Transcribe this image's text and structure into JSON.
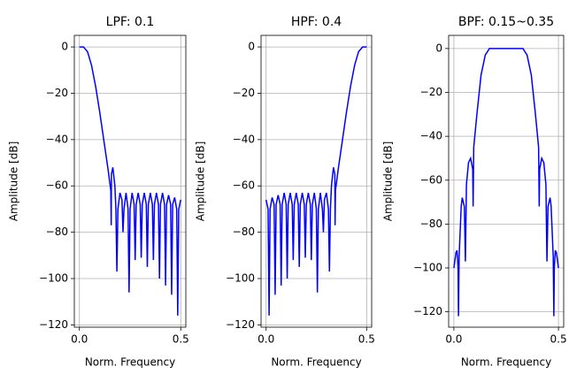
{
  "chart_data": [
    {
      "type": "line",
      "title": "LPF: 0.1",
      "x_label": "Norm. Frequency",
      "y_label": "Amplitude [dB]",
      "grid": true,
      "xlim": [
        -0.025,
        0.525
      ],
      "ylim": [
        -121,
        5
      ],
      "xticks": [
        {
          "value": 0,
          "label": "0.0"
        },
        0.5
      ],
      "yticks": [
        0,
        {
          "value": -20,
          "label": "−20"
        },
        {
          "value": -40,
          "label": "−40"
        },
        {
          "value": -60,
          "label": "−60"
        },
        {
          "value": -80,
          "label": "−80"
        },
        {
          "value": -100,
          "label": "−100"
        },
        {
          "value": -120,
          "label": "−120"
        }
      ],
      "x": [
        0,
        0.02,
        0.04,
        0.06,
        0.08,
        0.1,
        0.12,
        0.14,
        0.155,
        0.157,
        0.158,
        0.165,
        0.175,
        0.18,
        0.185,
        0.19,
        0.2,
        0.21,
        0.215,
        0.22,
        0.23,
        0.24,
        0.245,
        0.25,
        0.26,
        0.27,
        0.275,
        0.28,
        0.29,
        0.3,
        0.305,
        0.31,
        0.32,
        0.33,
        0.335,
        0.34,
        0.35,
        0.36,
        0.365,
        0.37,
        0.38,
        0.39,
        0.395,
        0.4,
        0.41,
        0.42,
        0.425,
        0.43,
        0.44,
        0.45,
        0.455,
        0.46,
        0.47,
        0.48,
        0.485,
        0.49,
        0.5
      ],
      "series": [
        {
          "color": "#0000ff",
          "values": [
            0,
            0,
            -2,
            -8,
            -17,
            -28,
            -40,
            -52,
            -62,
            -77,
            -55,
            -52,
            -60,
            -70,
            -97,
            -70,
            -63,
            -66,
            -80,
            -70,
            -63,
            -70,
            -106,
            -70,
            -63,
            -68,
            -92,
            -68,
            -63,
            -68,
            -91,
            -68,
            -63,
            -68,
            -95,
            -68,
            -63,
            -68,
            -92,
            -68,
            -63,
            -68,
            -100,
            -68,
            -63,
            -68,
            -103,
            -68,
            -64,
            -68,
            -107,
            -68,
            -65,
            -70,
            -116,
            -70,
            -66
          ]
        }
      ]
    },
    {
      "type": "line",
      "title": "HPF: 0.4",
      "x_label": "Norm. Frequency",
      "y_label": "Amplitude [dB]",
      "grid": true,
      "xlim": [
        -0.025,
        0.525
      ],
      "ylim": [
        -121,
        5
      ],
      "xticks": [
        {
          "value": 0,
          "label": "0.0"
        },
        0.5
      ],
      "yticks": [
        0,
        {
          "value": -20,
          "label": "−20"
        },
        {
          "value": -40,
          "label": "−40"
        },
        {
          "value": -60,
          "label": "−60"
        },
        {
          "value": -80,
          "label": "−80"
        },
        {
          "value": -100,
          "label": "−100"
        },
        {
          "value": -120,
          "label": "−120"
        }
      ],
      "x": [
        0,
        0.01,
        0.015,
        0.02,
        0.03,
        0.04,
        0.045,
        0.05,
        0.06,
        0.07,
        0.075,
        0.08,
        0.09,
        0.1,
        0.105,
        0.11,
        0.12,
        0.13,
        0.135,
        0.14,
        0.15,
        0.16,
        0.165,
        0.17,
        0.18,
        0.19,
        0.195,
        0.2,
        0.21,
        0.22,
        0.225,
        0.23,
        0.24,
        0.25,
        0.255,
        0.26,
        0.27,
        0.28,
        0.285,
        0.29,
        0.3,
        0.31,
        0.315,
        0.32,
        0.325,
        0.335,
        0.342,
        0.343,
        0.345,
        0.36,
        0.38,
        0.4,
        0.42,
        0.44,
        0.46,
        0.48,
        0.5
      ],
      "series": [
        {
          "color": "#0000ff",
          "values": [
            -66,
            -70,
            -116,
            -70,
            -65,
            -68,
            -107,
            -68,
            -64,
            -68,
            -103,
            -68,
            -63,
            -68,
            -100,
            -68,
            -63,
            -68,
            -92,
            -68,
            -63,
            -68,
            -95,
            -68,
            -63,
            -68,
            -91,
            -68,
            -63,
            -68,
            -92,
            -68,
            -63,
            -70,
            -106,
            -70,
            -63,
            -70,
            -80,
            -66,
            -63,
            -70,
            -97,
            -70,
            -60,
            -52,
            -55,
            -77,
            -62,
            -52,
            -40,
            -28,
            -17,
            -8,
            -2,
            0,
            0
          ]
        }
      ]
    },
    {
      "type": "line",
      "title": "BPF: 0.15~0.35",
      "x_label": "Norm. Frequency",
      "y_label": "Amplitude [dB]",
      "grid": true,
      "xlim": [
        -0.025,
        0.525
      ],
      "ylim": [
        -127,
        6
      ],
      "xticks": [
        {
          "value": 0,
          "label": "0.0"
        },
        0.5
      ],
      "yticks": [
        0,
        {
          "value": -20,
          "label": "−20"
        },
        {
          "value": -40,
          "label": "−40"
        },
        {
          "value": -60,
          "label": "−60"
        },
        {
          "value": -80,
          "label": "−80"
        },
        {
          "value": -100,
          "label": "−100"
        },
        {
          "value": -120,
          "label": "−120"
        }
      ],
      "x": [
        0,
        0.01,
        0.015,
        0.02,
        0.022,
        0.025,
        0.035,
        0.04,
        0.05,
        0.055,
        0.06,
        0.07,
        0.08,
        0.09,
        0.092,
        0.095,
        0.11,
        0.13,
        0.15,
        0.17,
        0.2,
        0.3,
        0.33,
        0.35,
        0.37,
        0.39,
        0.405,
        0.408,
        0.41,
        0.42,
        0.43,
        0.44,
        0.445,
        0.45,
        0.46,
        0.465,
        0.475,
        0.478,
        0.48,
        0.485,
        0.49,
        0.5
      ],
      "series": [
        {
          "color": "#0000ff",
          "values": [
            -100,
            -93,
            -92,
            -100,
            -122,
            -95,
            -72,
            -68,
            -72,
            -97,
            -62,
            -52,
            -50,
            -55,
            -72,
            -45,
            -30,
            -12,
            -3,
            0,
            0,
            0,
            0,
            -3,
            -12,
            -30,
            -45,
            -72,
            -55,
            -50,
            -52,
            -62,
            -97,
            -72,
            -68,
            -72,
            -95,
            -122,
            -100,
            -92,
            -93,
            -100
          ]
        }
      ]
    }
  ]
}
